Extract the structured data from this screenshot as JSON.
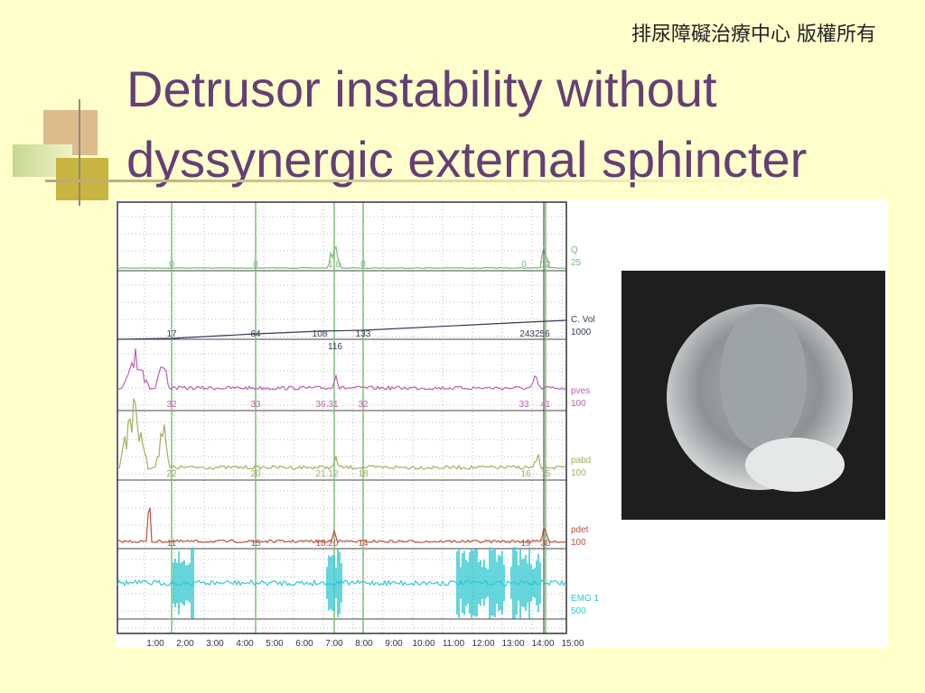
{
  "header": {
    "copyright": "排尿障礙治療中心 版權所有",
    "title_line1": "Detrusor instability without",
    "title_line2": "dyssynergic external sphincter"
  },
  "tracing": {
    "channels": [
      {
        "label": "Q",
        "scale": "25",
        "annotations": [
          "0",
          "0",
          "1.8",
          "0",
          "0",
          "12"
        ]
      },
      {
        "label": "C. Vol",
        "scale": "1000",
        "annotations": [
          "17",
          "64",
          "108",
          "116",
          "133",
          "243256"
        ]
      },
      {
        "label": "pves",
        "scale": "100",
        "annotations": [
          "32",
          "33",
          "36.31",
          "32",
          "33",
          "41"
        ]
      },
      {
        "label": "pabd",
        "scale": "100",
        "annotations": [
          "22",
          "20",
          "21.12",
          "18",
          "16",
          "15"
        ]
      },
      {
        "label": "pdet",
        "scale": "100",
        "annotations": [
          "11",
          "15",
          "18.20",
          "14",
          "19",
          "30"
        ]
      },
      {
        "label": "EMG 1",
        "scale": "500",
        "annotations": []
      }
    ],
    "time_labels": [
      "1:00",
      "2:00",
      "3:00",
      "4:00",
      "5:00",
      "6:00",
      "7:00",
      "8:00",
      "9:00",
      "10:00",
      "11:00",
      "12:00",
      "13:00",
      "14:00",
      "15:00"
    ]
  }
}
